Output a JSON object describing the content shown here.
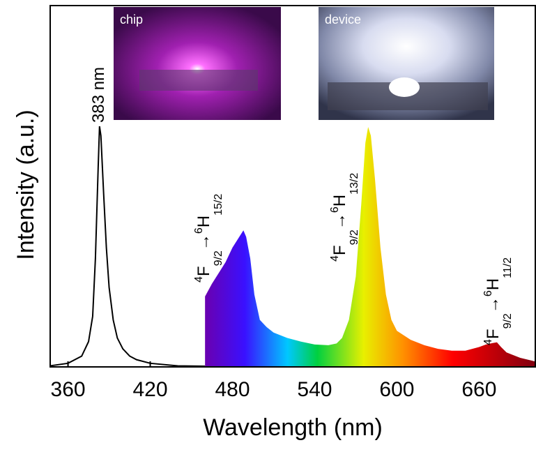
{
  "chart_data": {
    "type": "line",
    "x_label": "Wavelength (nm)",
    "y_label": "Intensity (a.u.)",
    "xlim": [
      347,
      701
    ],
    "xticks": [
      360,
      420,
      480,
      540,
      600,
      660
    ],
    "ylim": [
      0,
      100
    ],
    "series": [
      {
        "color": "#000000",
        "x": [
          347,
          360,
          370,
          375,
          378,
          380,
          382,
          383,
          384,
          386,
          388,
          390,
          393,
          396,
          400,
          405,
          410,
          420,
          440,
          460
        ],
        "values": [
          0.3,
          1,
          3,
          7,
          14,
          30,
          55,
          66.6,
          64,
          48,
          33,
          22,
          13,
          8,
          5,
          3,
          2,
          1,
          0.3,
          0.2
        ]
      },
      {
        "color": "spectrum",
        "area": true,
        "x": [
          460,
          465,
          470,
          475,
          480,
          485,
          488,
          490,
          493,
          496,
          500,
          505,
          510,
          520,
          530,
          540,
          550,
          556,
          560,
          565,
          570,
          574,
          577,
          579,
          581,
          584,
          588,
          592,
          596,
          600,
          610,
          620,
          630,
          640,
          650,
          660,
          665,
          670,
          673,
          676,
          680,
          690,
          701
        ],
        "values": [
          19.5,
          23,
          26,
          29,
          33,
          36,
          37.8,
          36,
          30,
          20,
          13,
          11,
          9.5,
          8,
          7,
          6.2,
          6,
          6.5,
          8,
          13,
          25,
          45,
          62,
          66.4,
          64,
          52,
          33,
          20,
          13,
          10,
          7.5,
          6,
          5,
          4.5,
          4.5,
          5.5,
          6.2,
          6.6,
          6.8,
          5.5,
          4,
          2.5,
          1.5
        ]
      }
    ],
    "annotations": [
      {
        "text": "383 nm"
      },
      {
        "sup1": "4",
        "term1": "F",
        "sub1": "9/2",
        "arrow": "→",
        "sup2": "6",
        "term2": "H",
        "sub2": "15/2"
      },
      {
        "sup1": "4",
        "term1": "F",
        "sub1": "9/2",
        "arrow": "→",
        "sup2": "6",
        "term2": "H",
        "sub2": "13/2"
      },
      {
        "sup1": "4",
        "term1": "F",
        "sub1": "9/2",
        "arrow": "→",
        "sup2": "6",
        "term2": "H",
        "sub2": "11/2"
      }
    ],
    "insets": [
      {
        "label": "chip"
      },
      {
        "label": "device"
      }
    ]
  }
}
